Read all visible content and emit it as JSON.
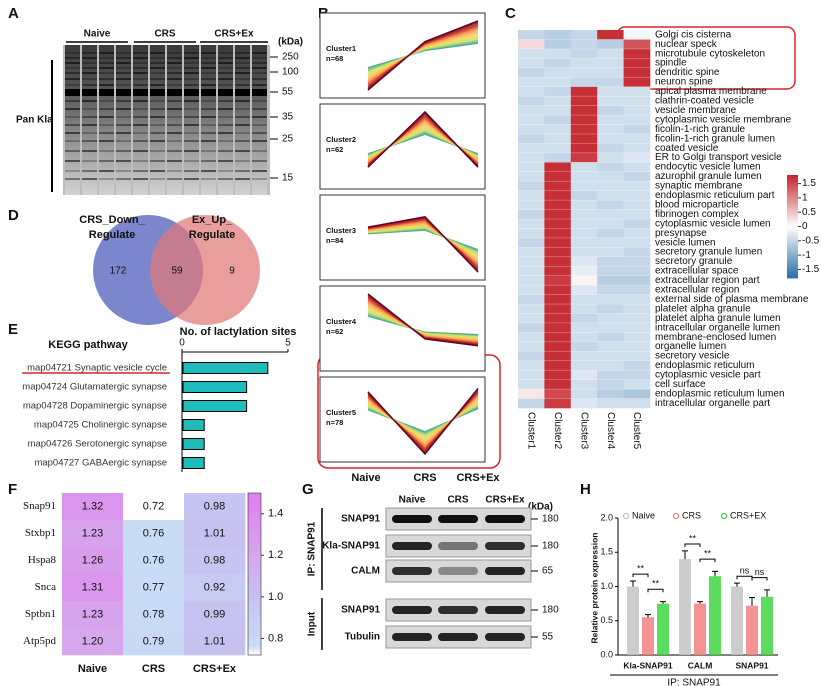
{
  "panel_labels": [
    "A",
    "B",
    "C",
    "D",
    "E",
    "F",
    "G",
    "H"
  ],
  "blot_a": {
    "groups": [
      "Naive",
      "CRS",
      "CRS+Ex"
    ],
    "unit": "(kDa)",
    "markers": [
      250,
      100,
      55,
      35,
      25,
      15
    ],
    "label": "Pan Kla"
  },
  "clusters": {
    "items": [
      {
        "name": "Cluster1",
        "n": "n=68",
        "profile": [
          -1,
          0.4,
          1
        ]
      },
      {
        "name": "Cluster2",
        "n": "n=62",
        "profile": [
          -0.6,
          1,
          -0.6
        ]
      },
      {
        "name": "Cluster3",
        "n": "n=84",
        "profile": [
          0.3,
          0.6,
          -1
        ]
      },
      {
        "name": "Cluster4",
        "n": "n=62",
        "profile": [
          1,
          -0.3,
          -0.5
        ]
      },
      {
        "name": "Cluster5",
        "n": "n=78",
        "profile": [
          0.8,
          -1,
          0.9
        ]
      }
    ],
    "x_labels": [
      "Naive",
      "CRS",
      "CRS+Ex"
    ]
  },
  "venn": {
    "left_label": [
      "CRS_Down_",
      "Regulate"
    ],
    "right_label": [
      "Ex_Up_",
      "Regulate"
    ],
    "left_only": 172,
    "both": 59,
    "right_only": 9,
    "colors": [
      "#7b86cc",
      "#e07878"
    ]
  },
  "blot_g": {
    "groups": [
      "Naive",
      "CRS",
      "CRS+Ex"
    ],
    "unit": "(kDa)",
    "sections": [
      "IP: SNAP91",
      "Input"
    ],
    "rows": [
      {
        "label": "SNAP91",
        "kda": 180
      },
      {
        "label": "Kla-SNAP91",
        "kda": 180
      },
      {
        "label": "CALM",
        "kda": 65
      },
      {
        "label": "SNAP91",
        "kda": 180
      },
      {
        "label": "Tubulin",
        "kda": 55
      }
    ]
  },
  "chart_data": [
    {
      "type": "heatmap",
      "columns": [
        "Cluster1",
        "Cluster2",
        "Cluster3",
        "Cluster4",
        "Cluster5"
      ],
      "rows": [
        "Golgi cis cisterna",
        "nuclear speck",
        "microtubule cytoskeleton",
        "spindle",
        "dendritic spine",
        "neuron spine",
        "apical plasma membrane",
        "clathrin-coated vesicle",
        "vesicle membrane",
        "cytoplasmic vesicle membrane",
        "ficolin-1-rich granule",
        "ficolin-1-rich granule lumen",
        "coated vesicle",
        "ER to Golgi transport vesicle",
        "endocytic vesicle lumen",
        "azurophil granule lumen",
        "synaptic membrane",
        "endoplasmic reticulum part",
        "blood microparticle",
        "fibrinogen complex",
        "cytoplasmic vesicle lumen",
        "presynapse",
        "vesicle lumen",
        "secretory granule lumen",
        "secretory granule",
        "extracellular space",
        "extracellular region part",
        "extracellular region",
        "external side of plasma membrane",
        "platelet alpha granule",
        "platelet alpha granule lumen",
        "intracellular organelle lumen",
        "membrane-enclosed lumen",
        "organelle lumen",
        "secretory vesicle",
        "endoplasmic reticulum",
        "cytoplasmic vesicle part",
        "cell surface",
        "endoplasmic reticulum lumen",
        "intracellular organelle part"
      ],
      "values": [
        [
          -0.5,
          -0.6,
          -0.5,
          1.7,
          -0.1
        ],
        [
          0.3,
          -0.6,
          -0.5,
          -0.6,
          1.4
        ],
        [
          -0.4,
          -0.4,
          -0.5,
          -0.4,
          1.7
        ],
        [
          -0.4,
          -0.5,
          -0.4,
          -0.4,
          1.7
        ],
        [
          -0.5,
          -0.4,
          -0.4,
          -0.4,
          1.7
        ],
        [
          -0.4,
          -0.4,
          -0.5,
          -0.5,
          1.7
        ],
        [
          -0.4,
          -0.5,
          1.7,
          -0.4,
          -0.4
        ],
        [
          -0.5,
          -0.4,
          1.7,
          -0.4,
          -0.4
        ],
        [
          -0.4,
          -0.4,
          1.7,
          -0.5,
          -0.4
        ],
        [
          -0.4,
          -0.5,
          1.7,
          -0.4,
          -0.4
        ],
        [
          -0.4,
          -0.4,
          1.7,
          -0.4,
          -0.5
        ],
        [
          -0.5,
          -0.4,
          1.7,
          -0.4,
          -0.4
        ],
        [
          -0.4,
          -0.4,
          1.7,
          -0.5,
          -0.4
        ],
        [
          -0.4,
          -0.5,
          1.6,
          -0.4,
          -0.3
        ],
        [
          -0.4,
          1.7,
          -0.4,
          -0.5,
          -0.4
        ],
        [
          -0.4,
          1.7,
          -0.4,
          -0.4,
          -0.5
        ],
        [
          -0.5,
          1.7,
          -0.4,
          -0.4,
          -0.4
        ],
        [
          -0.4,
          1.7,
          -0.5,
          -0.4,
          -0.4
        ],
        [
          -0.4,
          1.7,
          -0.4,
          -0.5,
          -0.4
        ],
        [
          -0.5,
          1.7,
          -0.4,
          -0.4,
          -0.4
        ],
        [
          -0.4,
          1.7,
          -0.4,
          -0.4,
          -0.5
        ],
        [
          -0.4,
          1.7,
          -0.4,
          -0.5,
          -0.4
        ],
        [
          -0.5,
          1.7,
          -0.4,
          -0.4,
          -0.4
        ],
        [
          -0.4,
          1.7,
          -0.4,
          -0.4,
          -0.5
        ],
        [
          -0.4,
          1.7,
          -0.3,
          -0.5,
          -0.5
        ],
        [
          -0.4,
          1.7,
          -0.2,
          -0.5,
          -0.5
        ],
        [
          -0.4,
          1.6,
          0.1,
          -0.6,
          -0.6
        ],
        [
          -0.4,
          1.7,
          -0.3,
          -0.5,
          -0.5
        ],
        [
          -0.5,
          1.7,
          -0.4,
          -0.4,
          -0.4
        ],
        [
          -0.4,
          1.7,
          -0.4,
          -0.5,
          -0.4
        ],
        [
          -0.4,
          1.7,
          -0.5,
          -0.4,
          -0.4
        ],
        [
          -0.5,
          1.7,
          -0.4,
          -0.4,
          -0.4
        ],
        [
          -0.4,
          1.7,
          -0.4,
          -0.5,
          -0.4
        ],
        [
          -0.4,
          1.7,
          -0.5,
          -0.4,
          -0.4
        ],
        [
          -0.5,
          1.7,
          -0.4,
          -0.4,
          -0.4
        ],
        [
          -0.4,
          1.7,
          -0.4,
          -0.4,
          -0.5
        ],
        [
          -0.4,
          1.7,
          -0.3,
          -0.5,
          -0.5
        ],
        [
          -0.4,
          1.7,
          -0.4,
          -0.5,
          -0.4
        ],
        [
          0.2,
          1.5,
          -0.4,
          -0.6,
          -0.7
        ],
        [
          -0.5,
          1.6,
          -0.3,
          -0.4,
          -0.4
        ]
      ],
      "colormap": [
        [
          -1.8,
          "#2b6da8"
        ],
        [
          0,
          "#ffffff"
        ],
        [
          1.8,
          "#c4232b"
        ]
      ],
      "colorbar_ticks": [
        1.5,
        1,
        0.5,
        0,
        -0.5,
        -1,
        -1.5
      ]
    },
    {
      "type": "bar",
      "orientation": "horizontal",
      "title": "No. of lactylation sites",
      "category_label": "KEGG pathway",
      "categories": [
        "map04721 Synaptic vesicle cycle",
        "map04724 Glutamatergic synapse",
        "map04728 Dopaminergic synapse",
        "map04725 Cholinergic synapse",
        "map04726 Serotonergic synapse",
        "map04727 GABAergic synapse"
      ],
      "values": [
        4,
        3,
        3,
        1,
        1,
        1
      ],
      "color": "#1fbcbc",
      "xlim": [
        0,
        5
      ],
      "xticks": [
        0,
        5
      ]
    },
    {
      "type": "heatmap",
      "columns": [
        "Naive",
        "CRS",
        "CRS+Ex"
      ],
      "rows": [
        "Snap91",
        "Stxbp1",
        "Hspa8",
        "Snca",
        "Sptbn1",
        "Atp5pd"
      ],
      "values": [
        [
          1.32,
          0.72,
          0.98
        ],
        [
          1.23,
          0.76,
          1.01
        ],
        [
          1.26,
          0.76,
          0.98
        ],
        [
          1.31,
          0.77,
          0.92
        ],
        [
          1.23,
          0.78,
          0.99
        ],
        [
          1.2,
          0.79,
          1.01
        ]
      ],
      "value_labels": [
        [
          "1.32",
          "0.72",
          "0.98"
        ],
        [
          "1.23",
          "0.76",
          "1.01"
        ],
        [
          "1.26",
          "0.76",
          "0.98"
        ],
        [
          "1.31",
          "0.77",
          "0.92"
        ],
        [
          "1.23",
          "0.78",
          "0.99"
        ],
        [
          "1.20",
          "0.79",
          "1.01"
        ]
      ],
      "colormap": [
        [
          0.72,
          "#ffffff"
        ],
        [
          0.76,
          "#c9dcf6"
        ],
        [
          1.0,
          "#c6c2f0"
        ],
        [
          1.2,
          "#d6a7ec"
        ],
        [
          1.5,
          "#e07cf0"
        ]
      ],
      "colorbar_ticks": [
        {
          "value": 1.4,
          "label": "1.4"
        },
        {
          "value": 1.2,
          "label": "1.2"
        },
        {
          "value": 1,
          "label": "1.0"
        },
        {
          "value": 0.8,
          "label": "0.8"
        }
      ]
    },
    {
      "type": "bar",
      "orientation": "vertical",
      "ylabel": "Relative protein expression",
      "xlabel": "IP: SNAP91",
      "categories": [
        "Kla-SNAP91",
        "CALM",
        "SNAP91"
      ],
      "series": [
        {
          "name": "Naive",
          "color": "#c4c4c4",
          "values": [
            1.0,
            1.4,
            1.0
          ],
          "errors": [
            0.08,
            0.12,
            0.05
          ]
        },
        {
          "name": "CRS",
          "color": "#f28080",
          "values": [
            0.55,
            0.75,
            0.72
          ],
          "errors": [
            0.04,
            0.03,
            0.12
          ]
        },
        {
          "name": "CRS+EX",
          "color": "#3fd63f",
          "values": [
            0.75,
            1.15,
            0.85
          ],
          "errors": [
            0.03,
            0.07,
            0.1
          ]
        }
      ],
      "annotations": [
        [
          "**",
          "**"
        ],
        [
          "**",
          "**"
        ],
        [
          "ns",
          "ns"
        ]
      ],
      "ylim": [
        0,
        2
      ],
      "yticks": [
        {
          "value": 0,
          "label": "0.0"
        },
        {
          "value": 0.5,
          "label": "0.5"
        },
        {
          "value": 1,
          "label": "1.0"
        },
        {
          "value": 1.5,
          "label": "1.5"
        },
        {
          "value": 2,
          "label": "2.0"
        }
      ],
      "legend": "top"
    }
  ]
}
